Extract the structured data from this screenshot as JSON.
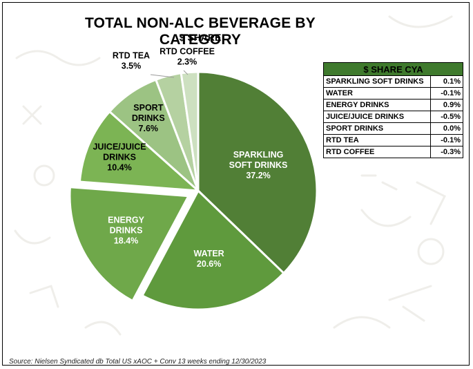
{
  "title": "TOTAL NON-ALC BEVERAGE BY CATEGORY",
  "subtitle": "$ SHARE",
  "chart_data": {
    "type": "pie",
    "title": "TOTAL NON-ALC BEVERAGE BY CATEGORY",
    "subtitle": "$ SHARE",
    "unit": "%",
    "slices": [
      {
        "name": "SPARKLING SOFT DRINKS",
        "value": 37.2,
        "label_lines": [
          "SPARKLING",
          "SOFT DRINKS",
          "37.2%"
        ],
        "color": "#517f36",
        "label_color": "#ffffff",
        "exploded": false
      },
      {
        "name": "WATER",
        "value": 20.6,
        "label_lines": [
          "WATER",
          "20.6%"
        ],
        "color": "#5f9a3d",
        "label_color": "#ffffff",
        "exploded": false
      },
      {
        "name": "ENERGY DRINKS",
        "value": 18.4,
        "label_lines": [
          "ENERGY",
          "DRINKS",
          "18.4%"
        ],
        "color": "#6fa84a",
        "label_color": "#ffffff",
        "exploded": true
      },
      {
        "name": "JUICE/JUICE DRINKS",
        "value": 10.4,
        "label_lines": [
          "JUICE/JUICE",
          "DRINKS",
          "10.4%"
        ],
        "color": "#7cb454",
        "label_color": "#000000",
        "exploded": false
      },
      {
        "name": "SPORT DRINKS",
        "value": 7.6,
        "label_lines": [
          "SPORT",
          "DRINKS",
          "7.6%"
        ],
        "color": "#9cc383",
        "label_color": "#000000",
        "exploded": false
      },
      {
        "name": "RTD TEA",
        "value": 3.5,
        "label_lines": [
          "RTD TEA",
          "3.5%"
        ],
        "color": "#b5d1a1",
        "label_color": "#000000",
        "exploded": false,
        "callout": true
      },
      {
        "name": "RTD COFFEE",
        "value": 2.3,
        "label_lines": [
          "RTD COFFEE",
          "2.3%"
        ],
        "color": "#cde0c0",
        "label_color": "#000000",
        "exploded": false,
        "callout": true
      }
    ]
  },
  "cya_table": {
    "header": "$ SHARE CYA",
    "rows": [
      {
        "category": "SPARKLING SOFT DRINKS",
        "value": "0.1%"
      },
      {
        "category": "WATER",
        "value": "-0.1%"
      },
      {
        "category": "ENERGY DRINKS",
        "value": "0.9%"
      },
      {
        "category": "JUICE/JUICE DRINKS",
        "value": "-0.5%"
      },
      {
        "category": "SPORT DRINKS",
        "value": "0.0%"
      },
      {
        "category": "RTD TEA",
        "value": "-0.1%"
      },
      {
        "category": "RTD COFFEE",
        "value": "-0.3%"
      }
    ]
  },
  "source": "Source: Nielsen Syndicated db Total US xAOC + Conv 13 weeks ending 12/30/2023"
}
